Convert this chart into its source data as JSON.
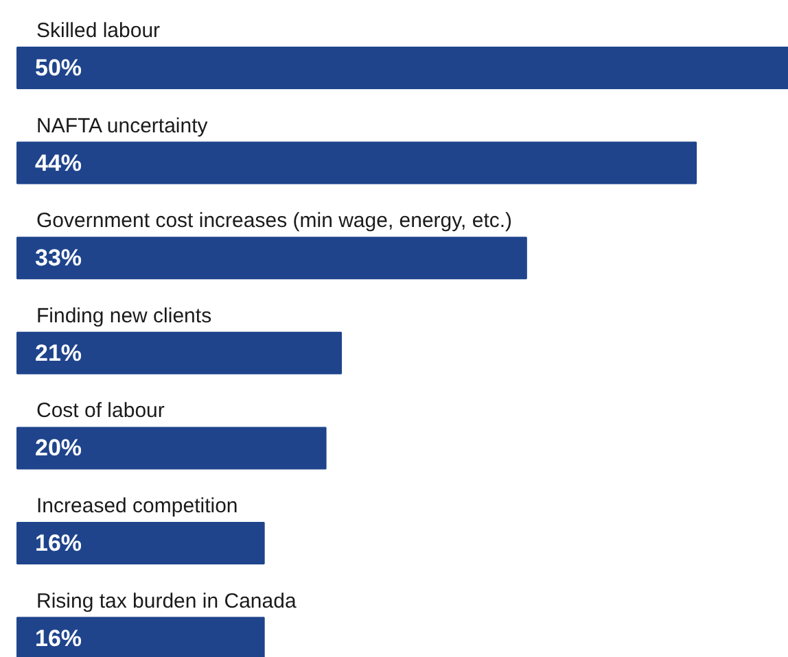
{
  "chart_data": {
    "type": "bar",
    "orientation": "horizontal",
    "categories": [
      "Skilled labour",
      "NAFTA uncertainty",
      "Government cost increases (min wage, energy, etc.)",
      "Finding new clients",
      "Cost of labour",
      "Increased competition",
      "Rising tax burden in Canada"
    ],
    "values": [
      50,
      44,
      33,
      21,
      20,
      16,
      16
    ],
    "value_labels": [
      "50%",
      "44%",
      "33%",
      "21%",
      "20%",
      "16%",
      "16%"
    ],
    "color": "#1f448c"
  }
}
